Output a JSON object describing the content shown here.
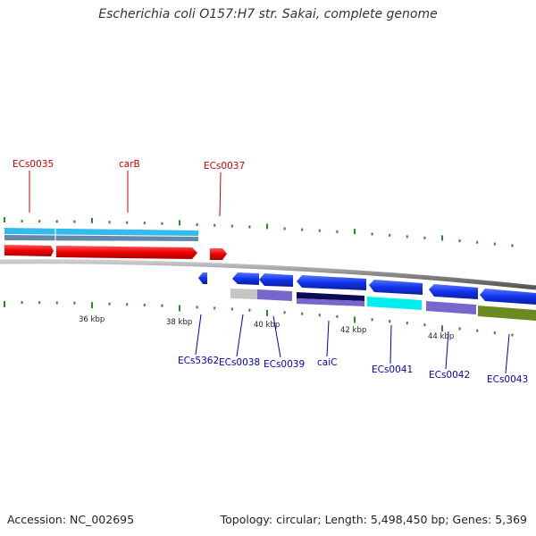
{
  "title": "Escherichia coli O157:H7 str. Sakai, complete genome",
  "footer": {
    "accession": "Accession: NC_002695",
    "stats": "Topology: circular; Length: 5,498,450 bp; Genes: 5,369"
  },
  "ruler": [
    "36 kbp",
    "38 kbp",
    "40 kbp",
    "42 kbp",
    "44 kbp"
  ],
  "genes": {
    "top": [
      {
        "label": "ECs0035"
      },
      {
        "label": "carB"
      },
      {
        "label": "ECs0037"
      }
    ],
    "bottom": [
      {
        "label": "ECs5362"
      },
      {
        "label": "ECs0038"
      },
      {
        "label": "ECs0039"
      },
      {
        "label": "caiC"
      },
      {
        "label": "ECs0041"
      },
      {
        "label": "ECs0042"
      },
      {
        "label": "ECs0043"
      }
    ]
  },
  "colors": {
    "forward_strand": "#ee1111",
    "reverse_strand": "#1133ee",
    "forward_label": "#cc0000",
    "reverse_label": "#0000bb",
    "backbone": "#888888",
    "tick": "#2a8a2a"
  }
}
